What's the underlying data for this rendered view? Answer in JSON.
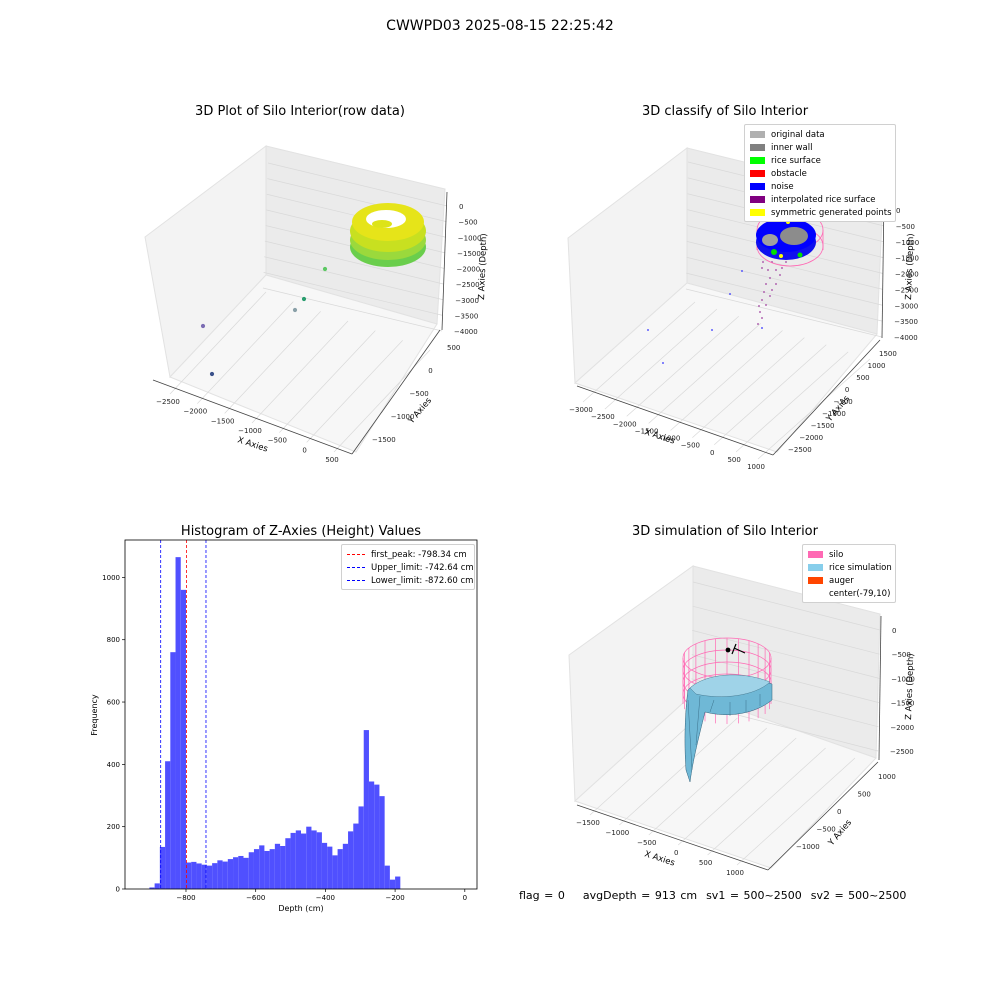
{
  "figure_title": "CWWPD03 2025-08-15 22:25:42",
  "colors": {
    "hist_bar": "#5050ff",
    "peak_line": "#ff0000",
    "limit_line": "#0000ff",
    "silo": "#ff69b4",
    "rice_sim": "#87ceeb",
    "auger": "#ff4500"
  },
  "chart_data": [
    {
      "type": "scatter",
      "dimensions": 3,
      "title": "3D Plot of Silo Interior(row data)",
      "xlabel": "X Axies",
      "ylabel": "Y Axies",
      "zlabel": "Z Axies (Depth)",
      "x_ticks": [
        "−2500",
        "−2000",
        "−1500",
        "−1000",
        "−500",
        "0",
        "500"
      ],
      "y_ticks": [
        "−1500",
        "−1000",
        "−500",
        "0",
        "500"
      ],
      "z_ticks": [
        "0",
        "−500",
        "−1000",
        "−1500",
        "−2000",
        "−2500",
        "−3000",
        "−3500",
        "−4000"
      ],
      "xlim": [
        -2700,
        600
      ],
      "ylim": [
        -1700,
        700
      ],
      "zlim": [
        -4200,
        100
      ],
      "colormap": "viridis by depth",
      "points": [
        {
          "x": -2600,
          "y": -1500,
          "z": -3900
        },
        {
          "x": -2700,
          "y": -1500,
          "z": -3300
        },
        {
          "x": -1500,
          "y": -800,
          "z": -2900
        },
        {
          "x": -1400,
          "y": -600,
          "z": -2700
        },
        {
          "x": -1300,
          "y": 200,
          "z": -2100
        }
      ]
    },
    {
      "type": "scatter",
      "dimensions": 3,
      "title": "3D classify of Silo Interior",
      "xlabel": "X Axies",
      "ylabel": "Y Axies",
      "zlabel": "Z Axies (Depth)",
      "x_ticks": [
        "−3000",
        "−2500",
        "−2000",
        "−1500",
        "−1000",
        "−500",
        "0",
        "500",
        "1000"
      ],
      "y_ticks": [
        "−2500",
        "−2000",
        "−1500",
        "−1000",
        "−500",
        "0",
        "500",
        "1000",
        "1500"
      ],
      "z_ticks": [
        "0",
        "−500",
        "−1000",
        "−1500",
        "−2000",
        "−2500",
        "−3000",
        "−3500",
        "−4000"
      ],
      "legend": [
        {
          "label": "original data",
          "color": "#b0b0b0"
        },
        {
          "label": "inner wall",
          "color": "#808080"
        },
        {
          "label": "rice surface",
          "color": "#00ff00"
        },
        {
          "label": "obstacle",
          "color": "#ff0000"
        },
        {
          "label": "noise",
          "color": "#0000ff"
        },
        {
          "label": "interpolated rice surface",
          "color": "#800080"
        },
        {
          "label": "symmetric generated points",
          "color": "#ffff00"
        }
      ],
      "legend_position": "upper-right"
    },
    {
      "type": "bar",
      "title": "Histogram of Z-Axies (Height) Values",
      "xlabel": "Depth (cm)",
      "ylabel": "Frequency",
      "xlim": [
        -975,
        35
      ],
      "ylim": [
        0,
        1120
      ],
      "x_ticks": [
        -800,
        -600,
        -400,
        -200,
        0
      ],
      "y_ticks": [
        0,
        200,
        400,
        600,
        800,
        1000
      ],
      "bin_width": 15,
      "bin_start": -905,
      "values": [
        5,
        18,
        135,
        410,
        760,
        1065,
        960,
        85,
        87,
        82,
        78,
        75,
        83,
        92,
        88,
        96,
        102,
        106,
        100,
        118,
        128,
        140,
        122,
        128,
        145,
        138,
        163,
        180,
        188,
        178,
        200,
        188,
        182,
        148,
        136,
        108,
        128,
        145,
        185,
        210,
        265,
        510,
        345,
        335,
        298,
        75,
        30,
        40
      ],
      "lines": [
        {
          "label": "first_peak: -798.34 cm",
          "x": -798.34,
          "color": "#ff0000"
        },
        {
          "label": "Upper_limit: -742.64 cm",
          "x": -742.64,
          "color": "#0000ff"
        },
        {
          "label": "Lower_limit: -872.60 cm",
          "x": -872.6,
          "color": "#0000ff"
        }
      ],
      "legend_position": "upper-right"
    },
    {
      "type": "surface",
      "dimensions": 3,
      "title": "3D simulation of Silo Interior",
      "xlabel": "X Axies",
      "ylabel": "Y Axies",
      "zlabel": "Z Axies (Depth)",
      "x_ticks": [
        "−1500",
        "−1000",
        "−500",
        "0",
        "500",
        "1000"
      ],
      "y_ticks": [
        "−1000",
        "−500",
        "0",
        "500",
        "1000"
      ],
      "z_ticks": [
        "0",
        "−500",
        "−1000",
        "−1500",
        "−2000",
        "−2500"
      ],
      "legend": [
        {
          "label": "silo",
          "color": "#ff69b4"
        },
        {
          "label": "rice simulation",
          "color": "#87ceeb"
        },
        {
          "label": "auger",
          "color": "#ff4500"
        },
        {
          "label": "center(-79,10)",
          "color": ""
        }
      ],
      "legend_position": "upper-right"
    }
  ],
  "footer": {
    "flag": "flag = 0",
    "avg_depth": "avgDepth = 913 cm",
    "sv1": "sv1 = 500~2500",
    "sv2": "sv2 = 500~2500"
  }
}
